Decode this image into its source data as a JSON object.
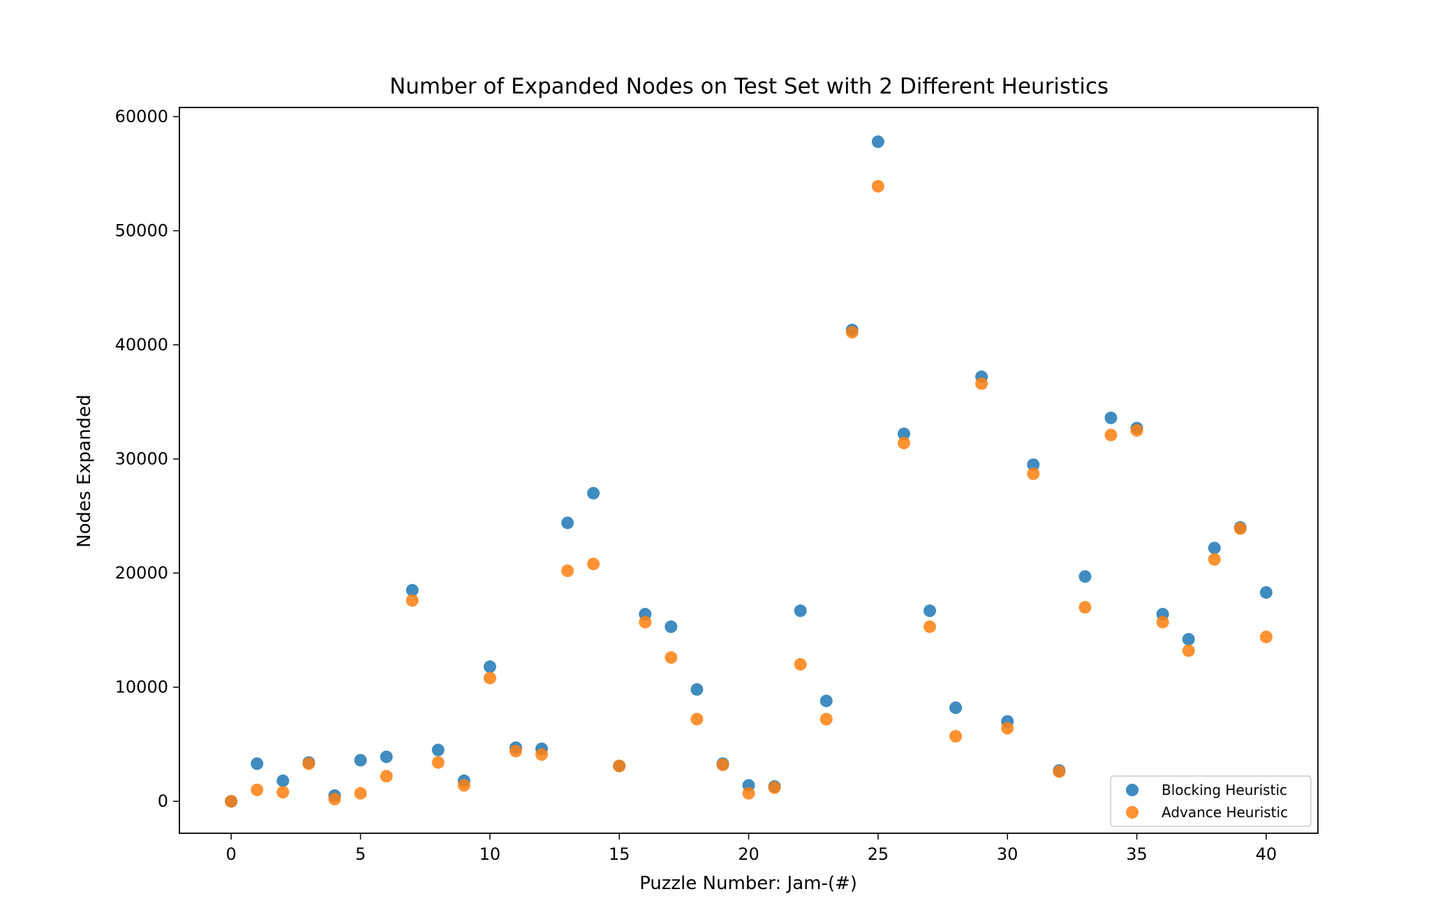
{
  "chart_data": {
    "type": "scatter",
    "title": "Number of Expanded Nodes on Test Set with 2 Different Heuristics",
    "xlabel": "Puzzle Number: Jam-(#)",
    "ylabel": "Nodes Expanded",
    "xlim": [
      -2,
      42
    ],
    "ylim": [
      -2800,
      60800
    ],
    "xticks": [
      0,
      5,
      10,
      15,
      20,
      25,
      30,
      35,
      40
    ],
    "yticks": [
      0,
      10000,
      20000,
      30000,
      40000,
      50000,
      60000
    ],
    "grid": false,
    "legend_position": "lower right",
    "x": [
      0,
      1,
      2,
      3,
      4,
      5,
      6,
      7,
      8,
      9,
      10,
      11,
      12,
      13,
      14,
      15,
      16,
      17,
      18,
      19,
      20,
      21,
      22,
      23,
      24,
      25,
      26,
      27,
      28,
      29,
      30,
      31,
      32,
      33,
      34,
      35,
      36,
      37,
      38,
      39,
      40
    ],
    "series": [
      {
        "name": "Blocking Heuristic",
        "color": "#1f77b4",
        "values": [
          0,
          3300,
          1800,
          3400,
          500,
          3600,
          3900,
          18500,
          4500,
          1800,
          11800,
          4700,
          4600,
          24400,
          27000,
          3100,
          16400,
          15300,
          9800,
          3300,
          1400,
          1300,
          16700,
          8800,
          41300,
          57800,
          32200,
          16700,
          8200,
          37200,
          7000,
          29500,
          2700,
          19700,
          33600,
          32700,
          16400,
          14200,
          22200,
          24000,
          18300
        ]
      },
      {
        "name": "Advance Heuristic",
        "color": "#ff7f0e",
        "values": [
          0,
          1000,
          800,
          3300,
          200,
          700,
          2200,
          17600,
          3400,
          1400,
          10800,
          4400,
          4100,
          20200,
          20800,
          3100,
          15700,
          12600,
          7200,
          3200,
          700,
          1200,
          12000,
          7200,
          41100,
          53900,
          31400,
          15300,
          5700,
          36600,
          6400,
          28700,
          2600,
          17000,
          32100,
          32500,
          15700,
          13200,
          21200,
          23900,
          14400
        ]
      }
    ]
  }
}
